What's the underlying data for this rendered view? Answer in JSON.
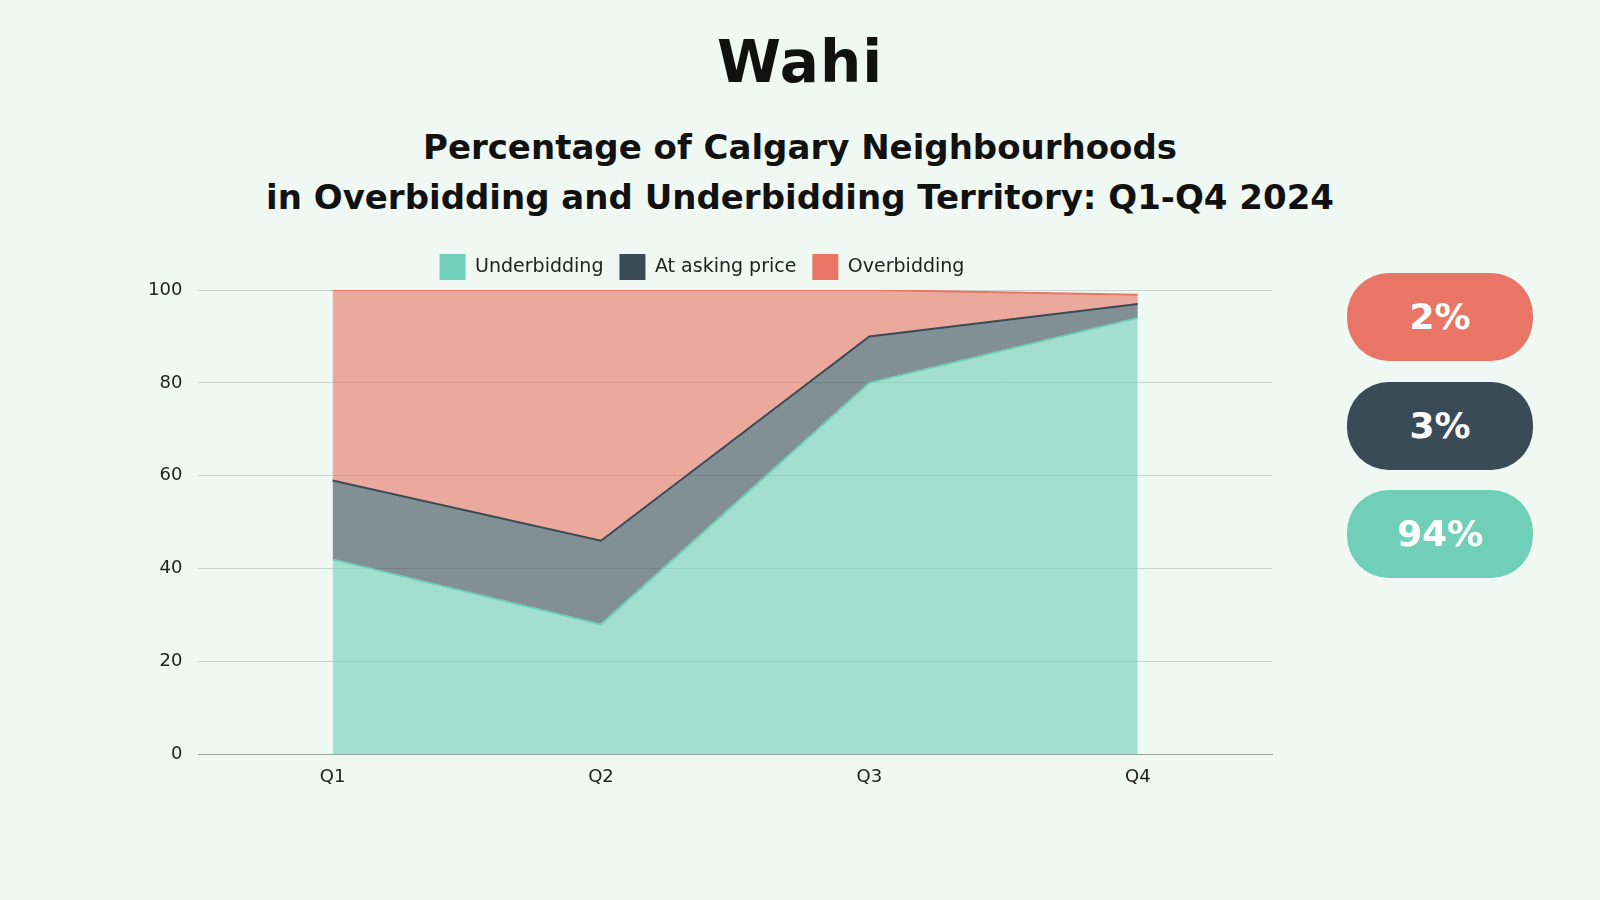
{
  "logo": "Wahi",
  "badges": [
    {
      "label": "2%",
      "color": "#e87566"
    },
    {
      "label": "3%",
      "color": "#384b57"
    },
    {
      "label": "94%",
      "color": "#6fcfb8"
    }
  ],
  "chart_data": {
    "type": "area",
    "title": [
      "Percentage of Calgary Neighbourhoods",
      "in Overbidding and Underbidding Territory: Q1-Q4 2024"
    ],
    "categories": [
      "Q1",
      "Q2",
      "Q3",
      "Q4"
    ],
    "series": [
      {
        "name": "Underbidding",
        "color": "#6fcfb8",
        "values": [
          42,
          28,
          80,
          94
        ]
      },
      {
        "name": "At asking price",
        "color": "#384b57",
        "values": [
          17,
          18,
          10,
          3
        ]
      },
      {
        "name": "Overbidding",
        "color": "#e87566",
        "values": [
          41,
          54,
          10,
          2
        ]
      }
    ],
    "ylim": [
      0,
      100
    ],
    "yticks": [
      0,
      20,
      40,
      60,
      80,
      100
    ],
    "grid": true,
    "stacked": true,
    "legend": "top"
  }
}
